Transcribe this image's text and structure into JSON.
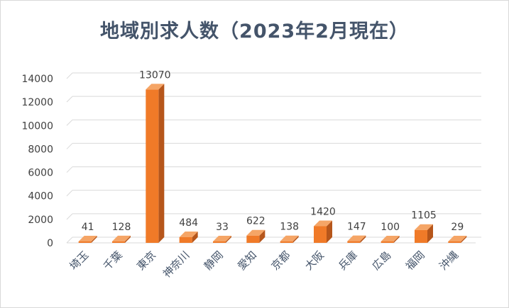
{
  "chart_data": {
    "type": "bar",
    "title": "地域別求人数（2023年2月現在）",
    "xlabel": "",
    "ylabel": "",
    "categories": [
      "埼玉",
      "千葉",
      "東京",
      "神奈川",
      "静岡",
      "愛知",
      "京都",
      "大阪",
      "兵庫",
      "広島",
      "福岡",
      "沖縄"
    ],
    "values": [
      41,
      128,
      13070,
      484,
      33,
      622,
      138,
      1420,
      147,
      100,
      1105,
      29
    ],
    "value_labels": [
      "41",
      "128",
      "13070",
      "484",
      "33",
      "622",
      "138",
      "1420",
      "147",
      "100",
      "1105",
      "29"
    ],
    "ylim": [
      0,
      14000
    ],
    "y_ticks": [
      "0",
      "2000",
      "4000",
      "6000",
      "8000",
      "10000",
      "12000",
      "14000"
    ],
    "grid": true,
    "legend": "none",
    "bar_style": "3d",
    "colors": {
      "bar_front": "#f07a28",
      "bar_top": "#f5a566",
      "bar_side": "#b6561b",
      "grid": "#d9d9d9",
      "title": "#44546a"
    }
  }
}
